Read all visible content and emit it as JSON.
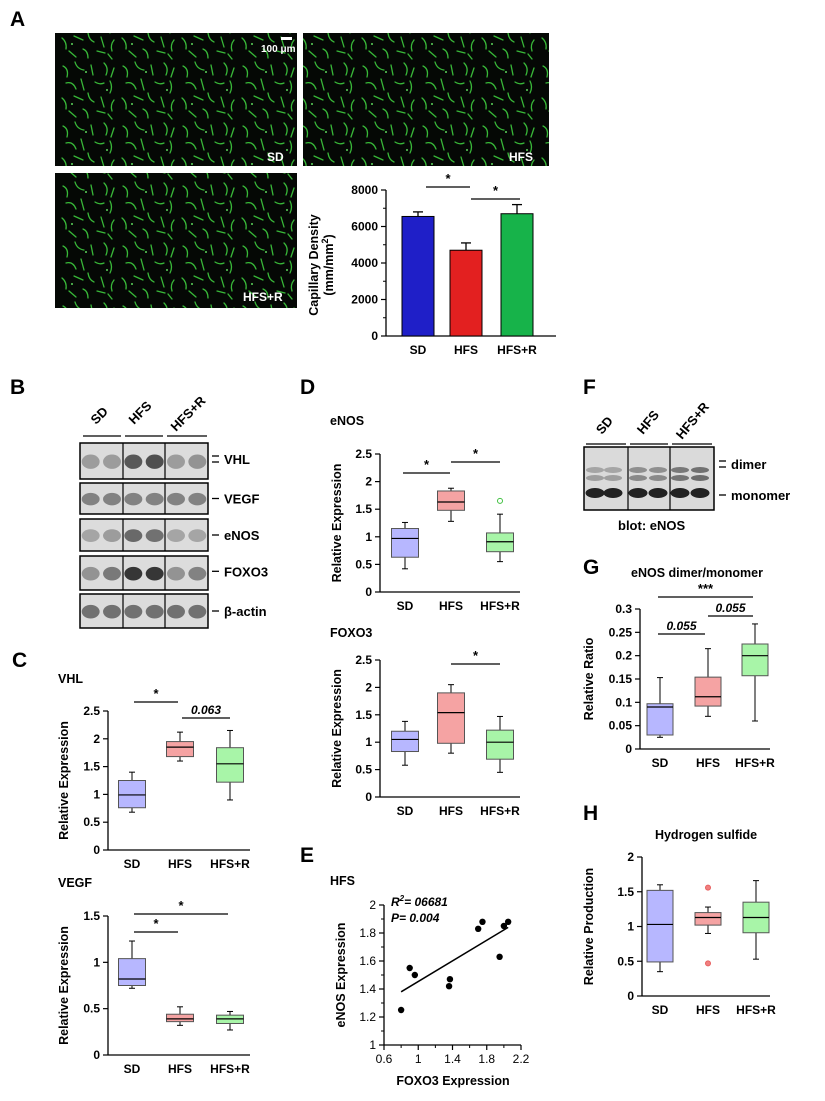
{
  "panel_labels": {
    "A": "A",
    "B": "B",
    "C": "C",
    "D": "D",
    "E": "E",
    "F": "F",
    "G": "G",
    "H": "H"
  },
  "micrographs": {
    "scale_bar": "100 μm",
    "labels": [
      "SD",
      "HFS",
      "HFS+R"
    ]
  },
  "colors": {
    "sd": "#1f1fc8",
    "hfs": "#e32020",
    "hfsr": "#17b34a",
    "sd_box": "#b7b7ff",
    "hfs_box": "#f5a3a3",
    "hfsr_box": "#a8f5a8",
    "vessel": "#3cc23c"
  },
  "westerns_b": {
    "lanes": [
      "SD",
      "HFS",
      "HFS+R"
    ],
    "bands": [
      "VHL",
      "VEGF",
      "eNOS",
      "FOXO3",
      "β-actin"
    ]
  },
  "western_f": {
    "lanes": [
      "SD",
      "HFS",
      "HFS+R"
    ],
    "bands": [
      "dimer",
      "monomer"
    ],
    "caption": "blot: eNOS"
  },
  "chart_data": [
    {
      "id": "A",
      "type": "bar",
      "categories": [
        "SD",
        "HFS",
        "HFS+R"
      ],
      "values": [
        6550,
        4700,
        6700
      ],
      "errors": [
        250,
        400,
        500
      ],
      "ylabel": "Capillary Density (mm/mm²)",
      "ylabel_line1": "Capillary Density",
      "ylabel_line2": "(mm/mm",
      "ylabel_sup": "2",
      "ylabel_end": ")",
      "ylim": [
        0,
        8000
      ],
      "ticks": [
        0,
        2000,
        4000,
        6000,
        8000
      ],
      "annotations": [
        {
          "from": 0,
          "to": 1,
          "text": "*"
        },
        {
          "from": 1,
          "to": 2,
          "text": "*"
        }
      ]
    },
    {
      "id": "C-VHL",
      "type": "box",
      "title": "VHL",
      "ylabel": "Relative Expression",
      "categories": [
        "SD",
        "HFS",
        "HFS+R"
      ],
      "ylim": [
        0,
        2.5
      ],
      "ticks": [
        0,
        0.5,
        1,
        1.5,
        2,
        2.5
      ],
      "boxes": [
        {
          "min": 0.68,
          "q1": 0.76,
          "median": 0.99,
          "q3": 1.25,
          "max": 1.4
        },
        {
          "min": 1.6,
          "q1": 1.68,
          "median": 1.85,
          "q3": 1.95,
          "max": 2.12
        },
        {
          "min": 0.9,
          "q1": 1.22,
          "median": 1.55,
          "q3": 1.84,
          "max": 2.15
        }
      ],
      "annotations": [
        {
          "from": 0,
          "to": 1,
          "text": "*"
        },
        {
          "from": 1,
          "to": 2,
          "text": "0.063"
        }
      ]
    },
    {
      "id": "C-VEGF",
      "type": "box",
      "title": "VEGF",
      "ylabel": "Relative Expression",
      "categories": [
        "SD",
        "HFS",
        "HFS+R"
      ],
      "ylim": [
        0,
        1.5
      ],
      "ticks": [
        0,
        0.5,
        1,
        1.5
      ],
      "boxes": [
        {
          "min": 0.72,
          "q1": 0.75,
          "median": 0.82,
          "q3": 1.04,
          "max": 1.23
        },
        {
          "min": 0.32,
          "q1": 0.36,
          "median": 0.39,
          "q3": 0.44,
          "max": 0.52
        },
        {
          "min": 0.27,
          "q1": 0.34,
          "median": 0.39,
          "q3": 0.43,
          "max": 0.47
        }
      ],
      "annotations": [
        {
          "from": 0,
          "to": 1,
          "text": "*"
        },
        {
          "from": 0,
          "to": 2,
          "text": "*"
        }
      ]
    },
    {
      "id": "D-eNOS",
      "type": "box",
      "title": "eNOS",
      "ylabel": "Relative Expression",
      "categories": [
        "SD",
        "HFS",
        "HFS+R"
      ],
      "ylim": [
        0,
        2.5
      ],
      "ticks": [
        0,
        0.5,
        1,
        1.5,
        2,
        2.5
      ],
      "boxes": [
        {
          "min": 0.42,
          "q1": 0.63,
          "median": 0.97,
          "q3": 1.15,
          "max": 1.26
        },
        {
          "min": 1.28,
          "q1": 1.48,
          "median": 1.63,
          "q3": 1.83,
          "max": 1.88
        },
        {
          "min": 0.55,
          "q1": 0.73,
          "median": 0.91,
          "q3": 1.07,
          "max": 1.41
        }
      ],
      "outliers": [
        {
          "group": 2,
          "value": 1.65
        }
      ],
      "annotations": [
        {
          "from": 0,
          "to": 1,
          "text": "*"
        },
        {
          "from": 1,
          "to": 2,
          "text": "*"
        }
      ]
    },
    {
      "id": "D-FOXO3",
      "type": "box",
      "title": "FOXO3",
      "ylabel": "Relative Expression",
      "categories": [
        "SD",
        "HFS",
        "HFS+R"
      ],
      "ylim": [
        0,
        2.5
      ],
      "ticks": [
        0,
        0.5,
        1,
        1.5,
        2,
        2.5
      ],
      "boxes": [
        {
          "min": 0.58,
          "q1": 0.83,
          "median": 1.05,
          "q3": 1.2,
          "max": 1.38
        },
        {
          "min": 0.8,
          "q1": 0.98,
          "median": 1.54,
          "q3": 1.9,
          "max": 2.05
        },
        {
          "min": 0.45,
          "q1": 0.69,
          "median": 1.0,
          "q3": 1.22,
          "max": 1.47
        }
      ],
      "annotations": [
        {
          "from": 1,
          "to": 2,
          "text": "*"
        }
      ]
    },
    {
      "id": "E",
      "type": "scatter",
      "title": "HFS",
      "xlabel": "FOXO3 Expression",
      "ylabel": "eNOS Expression",
      "xlim": [
        0.6,
        2.2
      ],
      "ylim": [
        1,
        2
      ],
      "xticks": [
        0.6,
        1,
        1.4,
        1.8,
        2.2
      ],
      "yticks": [
        1,
        1.2,
        1.4,
        1.6,
        1.8,
        2
      ],
      "x": [
        0.8,
        0.9,
        0.96,
        1.36,
        1.37,
        1.7,
        1.75,
        1.95,
        2.0,
        2.05
      ],
      "y": [
        1.25,
        1.55,
        1.5,
        1.42,
        1.47,
        1.83,
        1.88,
        1.63,
        1.85,
        1.88
      ],
      "fit": {
        "x": [
          0.8,
          2.05
        ],
        "y": [
          1.38,
          1.84
        ]
      },
      "stats": {
        "r2": "R²= 06681",
        "r2_base": "R",
        "r2_sup": "2",
        "r2_rest": "= 06681",
        "p": "P= 0.004"
      }
    },
    {
      "id": "G",
      "type": "box",
      "title": "eNOS dimer/monomer",
      "ylabel": "Relative Ratio",
      "categories": [
        "SD",
        "HFS",
        "HFS+R"
      ],
      "ylim": [
        0,
        0.3
      ],
      "ticks": [
        0,
        0.05,
        0.1,
        0.15,
        0.2,
        0.25,
        0.3
      ],
      "boxes": [
        {
          "min": 0.025,
          "q1": 0.03,
          "median": 0.09,
          "q3": 0.097,
          "max": 0.153
        },
        {
          "min": 0.07,
          "q1": 0.092,
          "median": 0.112,
          "q3": 0.154,
          "max": 0.215
        },
        {
          "min": 0.06,
          "q1": 0.157,
          "median": 0.2,
          "q3": 0.225,
          "max": 0.268
        }
      ],
      "annotations": [
        {
          "from": 0,
          "to": 1,
          "text": "0.055"
        },
        {
          "from": 1,
          "to": 2,
          "text": "0.055"
        },
        {
          "from": 0,
          "to": 2,
          "text": "***"
        }
      ]
    },
    {
      "id": "H",
      "type": "box",
      "title": "Hydrogen sulfide",
      "ylabel": "Relative Production",
      "categories": [
        "SD",
        "HFS",
        "HFS+R"
      ],
      "ylim": [
        0,
        2
      ],
      "ticks": [
        0,
        0.5,
        1,
        1.5,
        2
      ],
      "boxes": [
        {
          "min": 0.35,
          "q1": 0.49,
          "median": 1.03,
          "q3": 1.52,
          "max": 1.6
        },
        {
          "min": 0.9,
          "q1": 1.02,
          "median": 1.13,
          "q3": 1.2,
          "max": 1.28
        },
        {
          "min": 0.53,
          "q1": 0.91,
          "median": 1.13,
          "q3": 1.35,
          "max": 1.66
        }
      ],
      "outliers": [
        {
          "group": 1,
          "value": 1.56
        },
        {
          "group": 1,
          "value": 0.47
        }
      ]
    }
  ]
}
